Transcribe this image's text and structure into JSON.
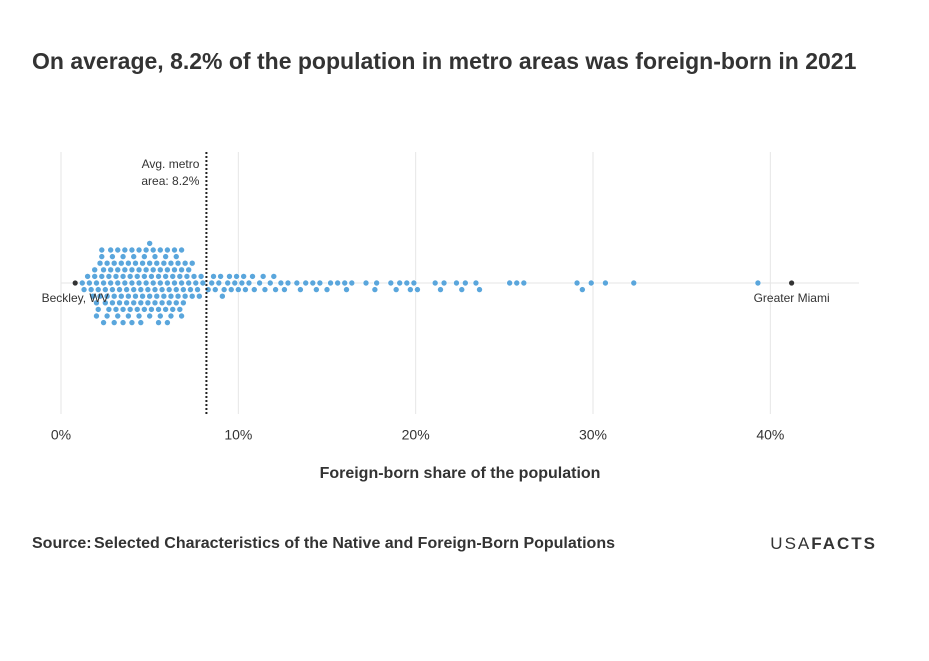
{
  "chart_data": {
    "type": "beeswarm",
    "title": "On average, 8.2% of the population in metro areas was foreign-born in 2021",
    "x_label": "Foreign-born share of the population",
    "xlim": [
      0,
      45
    ],
    "xticks": [
      {
        "value": 0,
        "label": "0%"
      },
      {
        "value": 10,
        "label": "10%"
      },
      {
        "value": 20,
        "label": "20%"
      },
      {
        "value": 30,
        "label": "30%"
      },
      {
        "value": 40,
        "label": "40%"
      }
    ],
    "grid": true,
    "color": "#5aa6dc",
    "values": [
      1.2,
      1.3,
      1.5,
      1.6,
      1.7,
      1.8,
      1.9,
      2.0,
      2.1,
      2.2,
      2.3,
      2.4,
      2.5,
      2.6,
      2.7,
      2.8,
      2.9,
      3.0,
      3.1,
      3.2,
      3.3,
      3.4,
      3.5,
      3.6,
      3.7,
      3.8,
      3.9,
      4.0,
      4.1,
      4.2,
      4.3,
      4.4,
      4.5,
      4.6,
      4.7,
      4.8,
      4.9,
      5.0,
      5.1,
      5.2,
      5.3,
      5.4,
      5.5,
      5.6,
      5.7,
      5.8,
      5.9,
      6.0,
      6.1,
      6.2,
      6.3,
      6.4,
      6.5,
      6.6,
      6.7,
      6.8,
      6.9,
      7.0,
      7.1,
      7.2,
      7.3,
      7.4,
      7.5,
      7.6,
      7.7,
      7.8,
      7.9,
      8.0,
      1.9,
      2.0,
      2.2,
      2.4,
      2.6,
      2.8,
      3.0,
      3.2,
      3.4,
      3.6,
      3.8,
      4.0,
      4.2,
      4.4,
      4.6,
      4.8,
      5.0,
      5.2,
      5.4,
      5.6,
      5.8,
      6.0,
      6.2,
      6.4,
      6.6,
      6.8,
      7.0,
      7.2,
      7.4,
      2.1,
      2.3,
      2.5,
      2.7,
      2.9,
      3.1,
      3.3,
      3.5,
      3.7,
      3.9,
      4.1,
      4.3,
      4.5,
      4.7,
      4.9,
      5.1,
      5.3,
      5.5,
      5.7,
      5.9,
      6.1,
      6.3,
      6.5,
      6.7,
      6.9,
      2.0,
      2.3,
      2.6,
      2.9,
      3.2,
      3.5,
      3.8,
      4.1,
      4.4,
      4.7,
      5.0,
      5.3,
      5.6,
      5.9,
      6.2,
      6.5,
      6.8,
      2.4,
      2.8,
      3.2,
      3.6,
      4.0,
      4.4,
      4.8,
      5.2,
      5.6,
      6.0,
      6.4,
      6.8,
      3.0,
      3.5,
      4.0,
      4.5,
      5.0,
      5.5,
      6.0,
      8.3,
      8.5,
      8.7,
      8.9,
      9.0,
      9.2,
      9.4,
      9.6,
      9.8,
      10.0,
      10.2,
      10.4,
      10.6,
      10.9,
      11.2,
      11.5,
      11.8,
      12.1,
      12.4,
      12.8,
      13.3,
      13.8,
      14.2,
      14.6,
      15.2,
      15.6,
      16.0,
      16.4,
      17.2,
      17.8,
      18.6,
      19.1,
      19.5,
      19.9,
      20.1,
      21.1,
      21.6,
      22.3,
      22.8,
      23.4,
      25.3,
      25.7,
      26.1,
      29.1,
      29.4,
      29.9,
      30.7,
      32.3,
      39.3,
      8.6,
      9.1,
      9.5,
      9.9,
      10.3,
      10.8,
      11.4,
      12.0,
      12.6,
      13.5,
      14.4,
      15.0,
      16.1,
      17.7,
      18.9,
      19.7,
      21.4,
      22.6,
      23.6
    ],
    "highlights": [
      {
        "label": "Beckley, WV",
        "value": 0.8,
        "color": "#333333"
      },
      {
        "label": "Greater Miami",
        "value": 41.2,
        "color": "#333333"
      }
    ],
    "average": {
      "value": 8.2,
      "lines": [
        "Avg. metro",
        "area: 8.2%"
      ]
    },
    "source_label": "Source:",
    "source": "Selected Characteristics of the Native and Foreign-Born Populations",
    "logo": [
      "USA",
      "FACTS"
    ]
  }
}
